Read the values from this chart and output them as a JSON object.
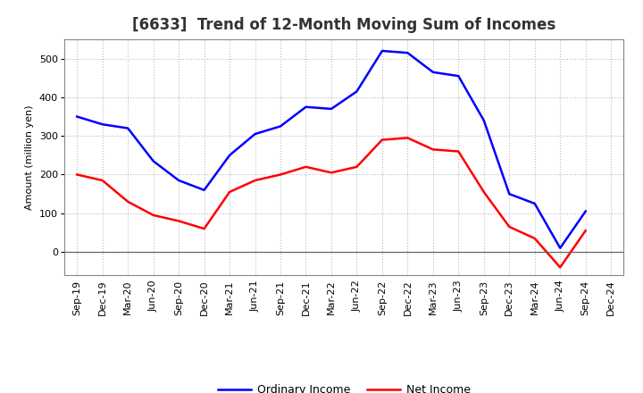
{
  "title": "[6633]  Trend of 12-Month Moving Sum of Incomes",
  "ylabel": "Amount (million yen)",
  "x_labels": [
    "Sep-19",
    "Dec-19",
    "Mar-20",
    "Jun-20",
    "Sep-20",
    "Dec-20",
    "Mar-21",
    "Jun-21",
    "Sep-21",
    "Dec-21",
    "Mar-22",
    "Jun-22",
    "Sep-22",
    "Dec-22",
    "Mar-23",
    "Jun-23",
    "Sep-23",
    "Dec-23",
    "Mar-24",
    "Jun-24",
    "Sep-24",
    "Dec-24"
  ],
  "ordinary_income": [
    350,
    330,
    320,
    235,
    185,
    160,
    250,
    305,
    325,
    375,
    370,
    415,
    520,
    515,
    465,
    455,
    340,
    150,
    125,
    10,
    105,
    null
  ],
  "net_income": [
    200,
    185,
    130,
    95,
    80,
    60,
    155,
    185,
    200,
    220,
    205,
    220,
    290,
    295,
    265,
    260,
    155,
    65,
    35,
    -40,
    55,
    null
  ],
  "ordinary_color": "#0000ff",
  "net_color": "#ff0000",
  "ylim_min": -60,
  "ylim_max": 550,
  "yticks": [
    0,
    100,
    200,
    300,
    400,
    500
  ],
  "background_color": "#ffffff",
  "grid_color": "#aaaaaa",
  "line_width": 1.8,
  "title_fontsize": 12,
  "axis_label_fontsize": 8,
  "tick_fontsize": 8,
  "legend_fontsize": 9
}
